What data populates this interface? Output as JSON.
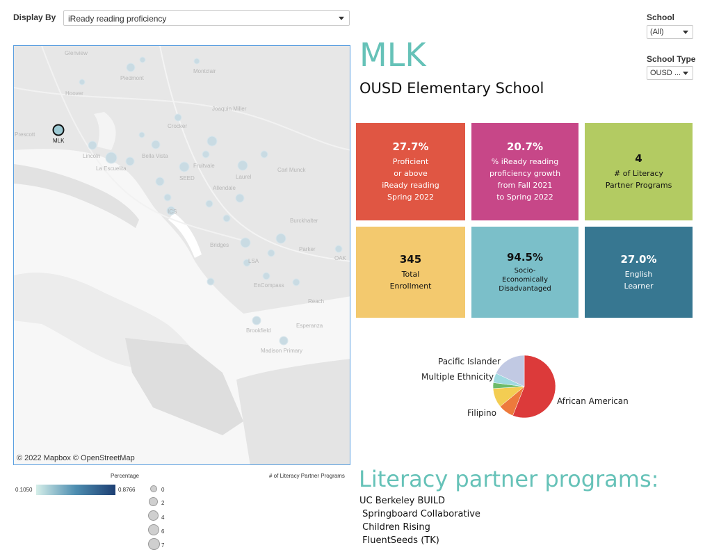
{
  "filters": {
    "display_by_label": "Display By",
    "display_by_value": "iReady reading proficiency",
    "school_label": "School",
    "school_value": "(All)",
    "school_type_label": "School Type",
    "school_type_value": "OUSD ..."
  },
  "map": {
    "credit": "© 2022 Mapbox  © OpenStreetMap",
    "selected_school": "MLK",
    "place_labels": [
      "Glenview",
      "Piedmont",
      "Montclair",
      "Hoover",
      "Joaquin Miller",
      "Prescott",
      "Crocker",
      "Lincoln",
      "Bella Vista",
      "La Escuelita",
      "Fruitvale",
      "Carl Munck",
      "SEED",
      "Laurel",
      "Allendale",
      "ICS",
      "Burckhalter",
      "Bridges",
      "Parker",
      "LSA",
      "OAK",
      "EnCompass",
      "Reach",
      "Esperanza",
      "Brookfield",
      "Madison Primary"
    ]
  },
  "header": {
    "title": "MLK",
    "subtitle": "OUSD Elementary School"
  },
  "tiles": [
    {
      "value": "27.7%",
      "lines": [
        "Proficient",
        "or above",
        "iReady reading",
        "Spring 2022"
      ],
      "color": "#e05643"
    },
    {
      "value": "20.7%",
      "lines": [
        "% iReady reading",
        "proficiency growth",
        "from Fall 2021",
        "to Spring 2022"
      ],
      "color": "#c74788"
    },
    {
      "value": "4",
      "lines": [
        "# of Literacy",
        "Partner Programs"
      ],
      "color": "#b3cb62"
    },
    {
      "value": "345",
      "lines": [
        "Total",
        "Enrollment"
      ],
      "color": "#f3c96e"
    },
    {
      "value": "94.5%",
      "lines": [
        "Socio-",
        "Economically",
        "Disadvantaged"
      ],
      "color": "#7bbfc9"
    },
    {
      "value": "27.0%",
      "lines": [
        "English",
        "Learner"
      ],
      "color": "#377791"
    }
  ],
  "chart_data": {
    "type": "pie",
    "slices": [
      {
        "label": "African American",
        "value": 56,
        "color": "#dc3a3a"
      },
      {
        "label": "Filipino",
        "value": 8,
        "color": "#ed7a3c"
      },
      {
        "label": "",
        "value": 10,
        "color": "#f3cd52"
      },
      {
        "label": "",
        "value": 3,
        "color": "#6dbb6a"
      },
      {
        "label": "Multiple Ethnicity",
        "value": 5,
        "color": "#9fd9e0"
      },
      {
        "label": "Pacific Islander",
        "value": 18,
        "color": "#c1c9e3"
      }
    ]
  },
  "programs": {
    "title": "Literacy partner programs:",
    "items": [
      "UC Berkeley BUILD",
      " Springboard Collaborative",
      " Children Rising",
      " FluentSeeds (TK)"
    ]
  },
  "legend": {
    "percentage_title": "Percentage",
    "min": "0.1050",
    "max": "0.8766",
    "size_title": "# of Literacy Partner Programs",
    "sizes": [
      "0",
      "2",
      "4",
      "6",
      "7"
    ]
  }
}
